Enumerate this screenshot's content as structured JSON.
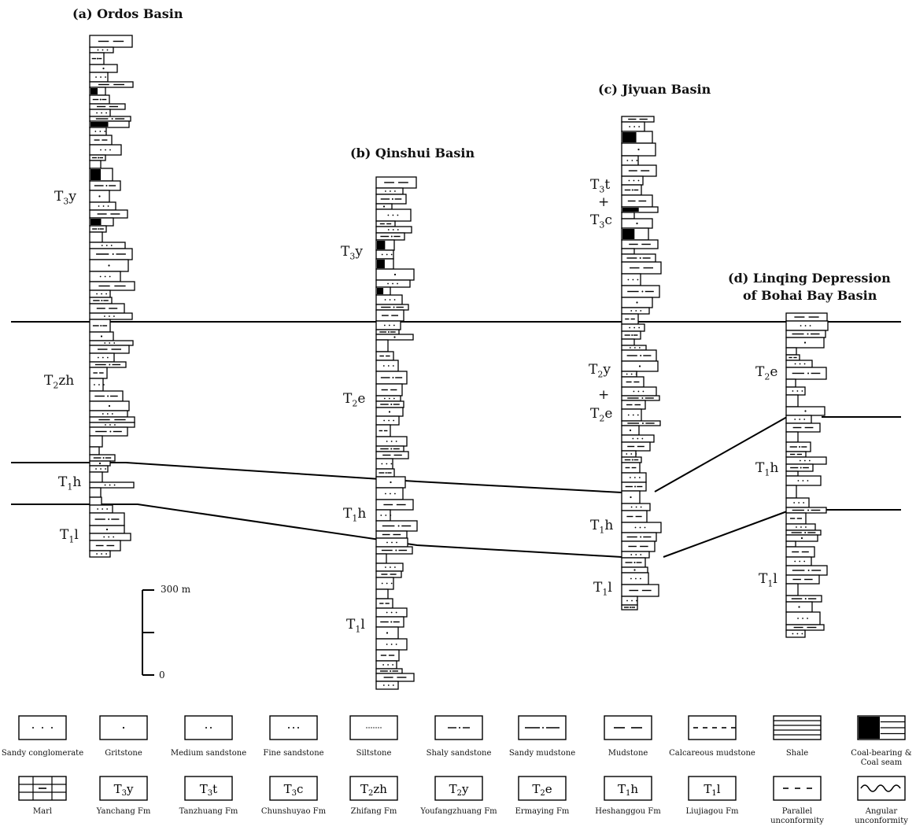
{
  "titles": {
    "a": "(a) Ordos Basin",
    "b": "(b) Qinshui Basin",
    "c": "(c) Jiyuan Basin",
    "d_line1": "(d) Linqing  Depression",
    "d_line2": "of Bohai Bay Basin"
  },
  "formations": {
    "a": {
      "t3y": "T3y",
      "t2zh": "T2zh",
      "t1h": "T1h",
      "t1l": "T1l"
    },
    "b": {
      "t3y": "T3y",
      "t2e": "T2e",
      "t1h": "T1h",
      "t1l": "T1l"
    },
    "c": {
      "t3t": "T3t",
      "plus1": "+",
      "t3c": "T3c",
      "t2y": "T2y",
      "plus2": "+",
      "t2e": "T2e",
      "t1h": "T1h",
      "t1l": "T1l"
    },
    "d": {
      "t2e": "T2e",
      "t1h": "T1h",
      "t1l": "T1l"
    }
  },
  "scale": {
    "top": "300 m",
    "bottom": "0"
  },
  "legend_row1": [
    {
      "label": "Sandy conglomerate",
      "icon": "dots-spaced"
    },
    {
      "label": "Gritstone",
      "icon": "dot-single"
    },
    {
      "label": "Medium sandstone",
      "icon": "dots-pair"
    },
    {
      "label": "Fine sandstone",
      "icon": "dots-three"
    },
    {
      "label": "Siltstone",
      "icon": "dots-fine"
    },
    {
      "label": "Shaly sandstone",
      "icon": "dash-dot"
    },
    {
      "label": "Sandy mudstone",
      "icon": "dash-dot-long"
    },
    {
      "label": "Mudstone",
      "icon": "dashes"
    },
    {
      "label": "Calcareous mudstone",
      "icon": "calcareous"
    },
    {
      "label": "Shale",
      "icon": "lines"
    },
    {
      "label": "Coal-bearing &",
      "label2": "Coal seam",
      "icon": "coal"
    }
  ],
  "legend_row2": [
    {
      "label": "Marl",
      "icon": "marl"
    },
    {
      "label": "Yanchang Fm",
      "symbol": "T3y"
    },
    {
      "label": "Tanzhuang Fm",
      "symbol": "T3t"
    },
    {
      "label": "Chunshuyao Fm",
      "symbol": "T3c"
    },
    {
      "label": "Zhifang Fm",
      "symbol": "T2zh"
    },
    {
      "label": "Youfangzhuang Fm",
      "symbol": "T2y"
    },
    {
      "label": "Ermaying Fm",
      "symbol": "T2e"
    },
    {
      "label": "Heshanggou Fm",
      "symbol": "T1h"
    },
    {
      "label": "Liujiagou Fm",
      "symbol": "T1l"
    },
    {
      "label": "Parallel",
      "label2": "unconformity",
      "icon": "parallel"
    },
    {
      "label": "Angular",
      "label2": "unconformity",
      "icon": "angular"
    }
  ]
}
